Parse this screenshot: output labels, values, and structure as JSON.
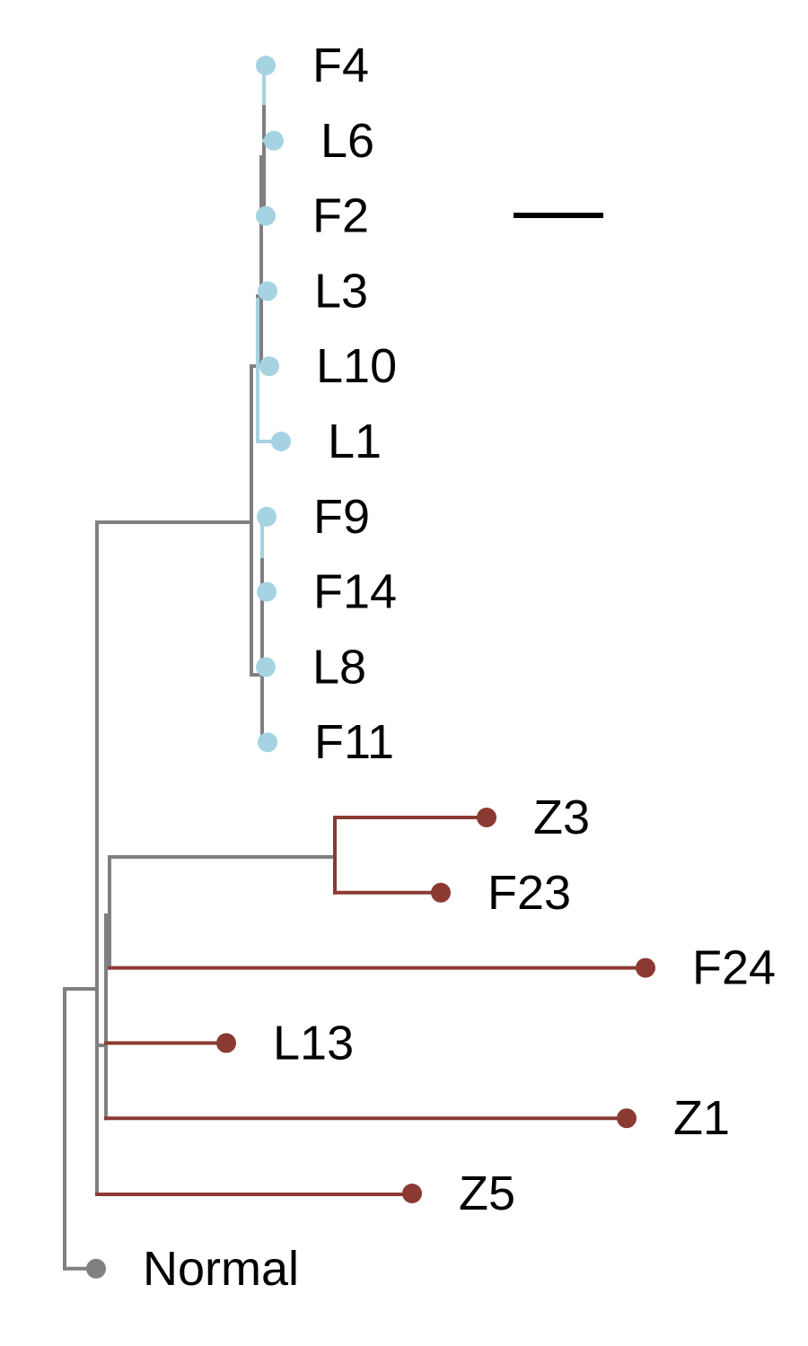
{
  "colors": {
    "clade_blue": "#a6d3e1",
    "clade_red": "#8b3a33",
    "backbone": "#808080",
    "scale_bar": "#000000"
  },
  "tips": [
    {
      "id": "F4",
      "label": "F4",
      "group": "blue"
    },
    {
      "id": "L6",
      "label": "L6",
      "group": "blue"
    },
    {
      "id": "F2",
      "label": "F2",
      "group": "blue"
    },
    {
      "id": "L3",
      "label": "L3",
      "group": "blue"
    },
    {
      "id": "L10",
      "label": "L10",
      "group": "blue"
    },
    {
      "id": "L1",
      "label": "L1",
      "group": "blue"
    },
    {
      "id": "F9",
      "label": "F9",
      "group": "blue"
    },
    {
      "id": "F14",
      "label": "F14",
      "group": "blue"
    },
    {
      "id": "L8",
      "label": "L8",
      "group": "blue"
    },
    {
      "id": "F11",
      "label": "F11",
      "group": "blue"
    },
    {
      "id": "Z3",
      "label": "Z3",
      "group": "red"
    },
    {
      "id": "F23",
      "label": "F23",
      "group": "red"
    },
    {
      "id": "F24",
      "label": "F24",
      "group": "red"
    },
    {
      "id": "L13",
      "label": "L13",
      "group": "red"
    },
    {
      "id": "Z1",
      "label": "Z1",
      "group": "red"
    },
    {
      "id": "Z5",
      "label": "Z5",
      "group": "red"
    },
    {
      "id": "Normal",
      "label": "Normal",
      "group": "normal"
    }
  ]
}
